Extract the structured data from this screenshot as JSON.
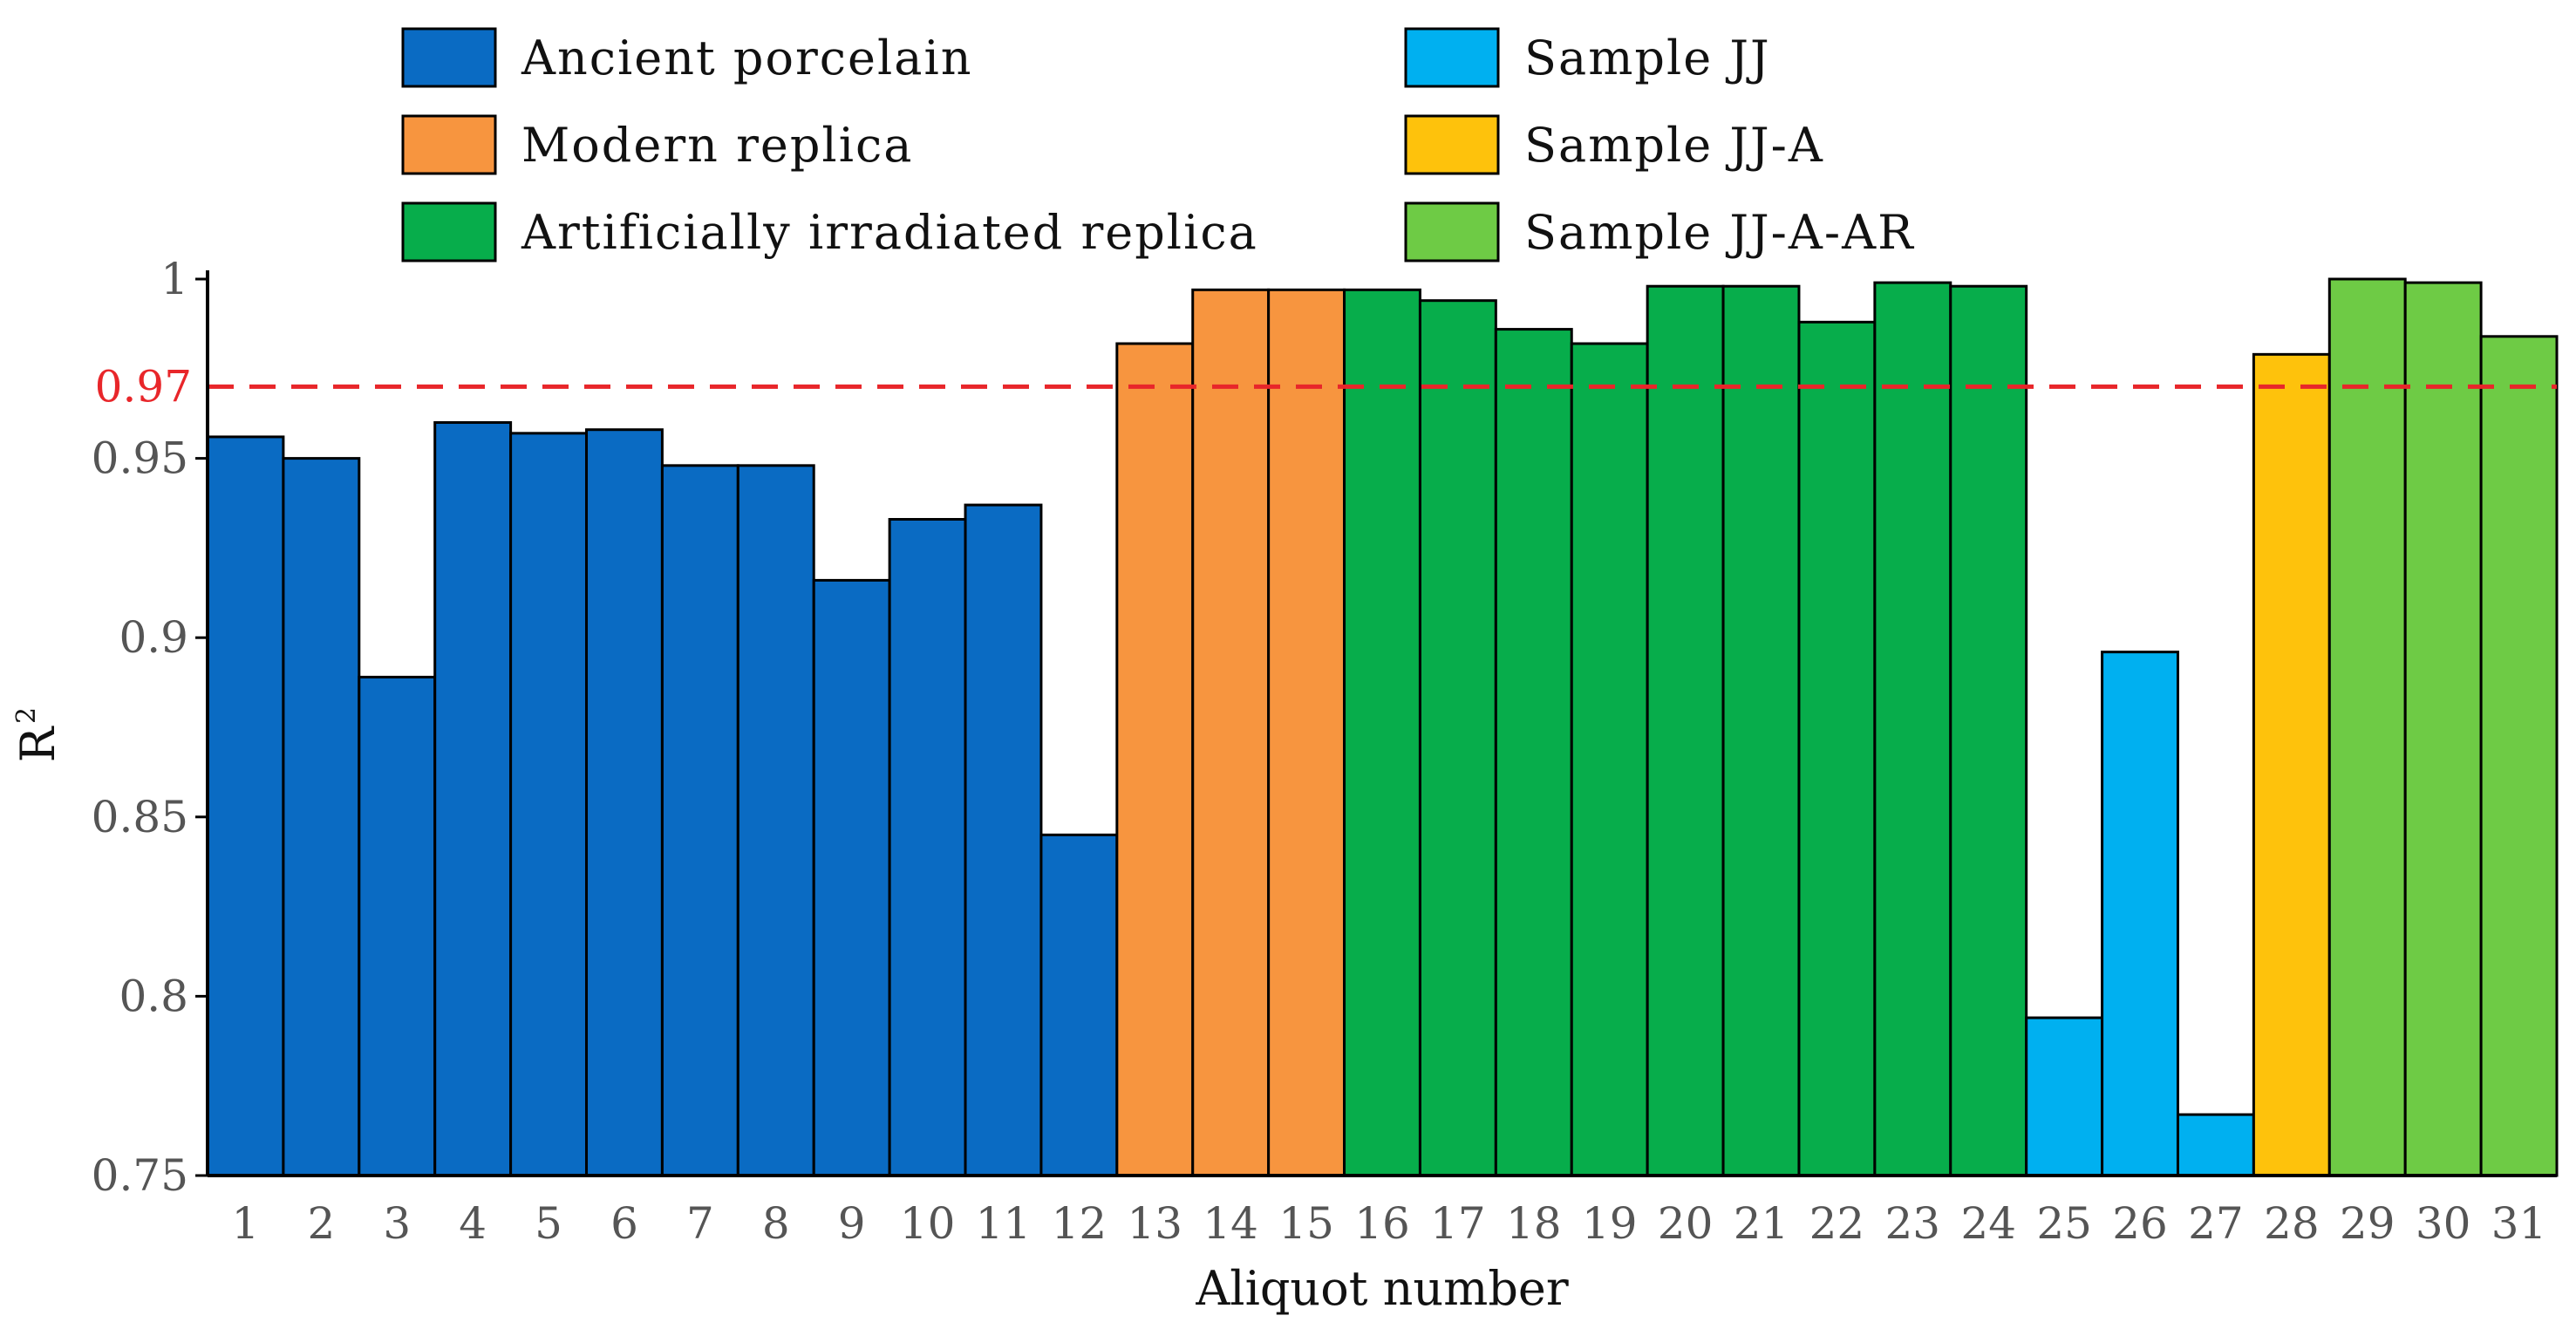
{
  "chart_data": {
    "type": "bar",
    "title": "",
    "xlabel": "Aliquot number",
    "ylabel": "R",
    "ylabel_superscript": "2",
    "ylim": [
      0.75,
      1.0
    ],
    "yticks": [
      {
        "value": 0.75,
        "label": "0.75"
      },
      {
        "value": 0.8,
        "label": "0.8"
      },
      {
        "value": 0.85,
        "label": "0.85"
      },
      {
        "value": 0.9,
        "label": "0.9"
      },
      {
        "value": 0.95,
        "label": "0.95"
      },
      {
        "value": 1.0,
        "label": "1"
      }
    ],
    "reference_line": {
      "value": 0.97,
      "label": "0.97",
      "color": "#e8262a",
      "style": "dashed"
    },
    "legend_position": "top",
    "groups": [
      {
        "name": "Ancient porcelain",
        "color": "#0a6bc3"
      },
      {
        "name": "Modern replica",
        "color": "#f7953f"
      },
      {
        "name": "Artificially irradiated replica",
        "color": "#07ad4b"
      },
      {
        "name": "Sample JJ",
        "color": "#00b0f0"
      },
      {
        "name": "Sample JJ-A",
        "color": "#fec20c"
      },
      {
        "name": "Sample JJ-A-AR",
        "color": "#6ecb45"
      }
    ],
    "categories": [
      "1",
      "2",
      "3",
      "4",
      "5",
      "6",
      "7",
      "8",
      "9",
      "10",
      "11",
      "12",
      "13",
      "14",
      "15",
      "16",
      "17",
      "18",
      "19",
      "20",
      "21",
      "22",
      "23",
      "24",
      "25",
      "26",
      "27",
      "28",
      "29",
      "30",
      "31"
    ],
    "values": [
      0.956,
      0.95,
      0.889,
      0.96,
      0.957,
      0.958,
      0.948,
      0.948,
      0.916,
      0.933,
      0.937,
      0.845,
      0.982,
      0.997,
      0.997,
      0.997,
      0.994,
      0.986,
      0.982,
      0.998,
      0.998,
      0.988,
      0.999,
      0.998,
      0.794,
      0.896,
      0.767,
      0.979,
      1.0,
      0.999,
      0.984
    ],
    "bar_group": [
      0,
      0,
      0,
      0,
      0,
      0,
      0,
      0,
      0,
      0,
      0,
      0,
      1,
      1,
      1,
      2,
      2,
      2,
      2,
      2,
      2,
      2,
      2,
      2,
      3,
      3,
      3,
      4,
      5,
      5,
      5
    ]
  }
}
